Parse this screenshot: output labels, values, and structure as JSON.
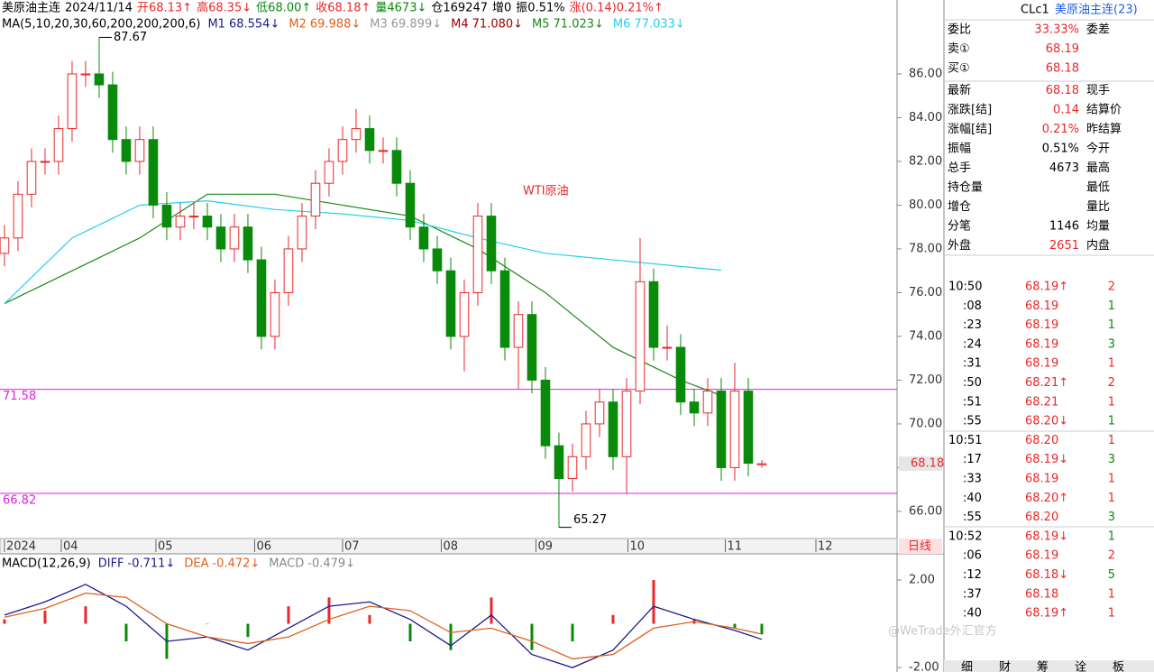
{
  "header": {
    "line1": [
      {
        "text": "美原油主连",
        "color": "#000000"
      },
      {
        "text": "2024/11/14",
        "color": "#000000"
      },
      {
        "text": "开68.13↑",
        "color": "#e8282b"
      },
      {
        "text": "高68.35↓",
        "color": "#e8282b"
      },
      {
        "text": "低68.00↑",
        "color": "#0a8a0a"
      },
      {
        "text": "收68.18↑",
        "color": "#e8282b"
      },
      {
        "text": "量4673↓",
        "color": "#0a8a0a"
      },
      {
        "text": "仓169247",
        "color": "#000000"
      },
      {
        "text": "增0",
        "color": "#000000"
      },
      {
        "text": "振0.51%",
        "color": "#000000"
      },
      {
        "text": "涨(0.14)0.21%↑",
        "color": "#e8282b"
      }
    ],
    "ma_title": "MA(5,10,20,30,60,200,200,200,6)",
    "ma": [
      {
        "name": "M1",
        "label": "68.554↓",
        "color": "#1a1a8c"
      },
      {
        "name": "M2",
        "label": "69.988↓",
        "color": "#e0601a"
      },
      {
        "name": "M3",
        "label": "69.899↓",
        "color": "#999999"
      },
      {
        "name": "M4",
        "label": "71.080↓",
        "color": "#a00000"
      },
      {
        "name": "M5",
        "label": "71.023↓",
        "color": "#1a8a1a"
      },
      {
        "name": "M6",
        "label": "77.033↓",
        "color": "#22d0e8"
      }
    ]
  },
  "chart_data": [
    {
      "type": "candlestick",
      "annotation": "WTI原油",
      "period": "日线",
      "open": [
        77.8,
        78.5,
        80.5,
        82,
        82,
        83.5,
        86,
        86,
        85.5,
        83,
        82,
        83,
        80,
        79,
        79.5,
        79.5,
        79,
        78,
        79,
        77.5,
        74,
        76,
        78,
        79.5,
        81,
        82,
        83,
        83.5,
        82.5,
        82.5,
        81,
        79,
        78,
        77,
        74,
        76,
        79.5,
        77,
        73.5,
        75,
        72,
        69,
        67.5,
        68.5,
        70,
        71,
        68.5,
        71.5,
        76.5,
        73.5,
        73.5,
        71,
        70.5,
        71.5,
        68,
        71.5,
        68.13
      ],
      "high": [
        79.1,
        81.1,
        82.6,
        82.6,
        84.1,
        86.6,
        86.6,
        87.67,
        86.1,
        83.6,
        83.6,
        83.6,
        80.6,
        80.1,
        80.1,
        80.1,
        79.6,
        79.6,
        79.6,
        78.1,
        76.6,
        78.6,
        80.1,
        81.6,
        82.6,
        83.6,
        84.4,
        84.1,
        83.1,
        83.1,
        81.6,
        79.6,
        78.6,
        77.6,
        76.6,
        80.1,
        80.1,
        77.6,
        75.6,
        75.6,
        72.6,
        69.6,
        69.1,
        70.6,
        71.6,
        71.6,
        72.1,
        78.5,
        77.1,
        74.5,
        74.1,
        71.6,
        72.1,
        72.1,
        72.8,
        72.1,
        68.35
      ],
      "low": [
        77.2,
        77.9,
        79.9,
        81.4,
        81.4,
        82.9,
        85.4,
        84.9,
        82.4,
        81.4,
        81.4,
        79.4,
        78.4,
        78.4,
        78.9,
        78.4,
        77.4,
        77.4,
        76.9,
        73.4,
        73.4,
        75.4,
        77.4,
        78.9,
        80.4,
        81.4,
        82.4,
        81.9,
        81.9,
        80.4,
        78.4,
        77.4,
        76.4,
        73.4,
        72.4,
        75.4,
        76.4,
        72.9,
        71.6,
        71.4,
        68.4,
        65.27,
        66.9,
        67.9,
        69.4,
        67.9,
        66.8,
        70.9,
        72.9,
        72.9,
        70.4,
        69.9,
        69.9,
        67.4,
        67.4,
        67.6,
        68.0
      ],
      "close": [
        78.5,
        80.5,
        82,
        82,
        83.5,
        86,
        86,
        85.5,
        83,
        82,
        83,
        80,
        79,
        79.5,
        79.5,
        79,
        78,
        79,
        77.5,
        74,
        76,
        78,
        79.5,
        81,
        82,
        83,
        83.5,
        82.5,
        82.5,
        81,
        79,
        78,
        77,
        74,
        76,
        79.5,
        77,
        73.5,
        75,
        72,
        69,
        67.5,
        68.5,
        70,
        71,
        68.5,
        71.5,
        76.5,
        73.5,
        73.5,
        71,
        70.5,
        71.5,
        68,
        71.5,
        68.2,
        68.18
      ],
      "up_color": "#e8282b",
      "down_color": "#0a8a0a",
      "series": [
        {
          "name": "M5",
          "color": "#1a8a1a",
          "x": [
            0,
            5,
            10,
            15,
            20,
            25,
            30,
            35,
            40,
            45,
            50,
            53
          ],
          "values": [
            75.5,
            77,
            78.5,
            80.5,
            80.5,
            80,
            79.5,
            78,
            76,
            73.5,
            72,
            71.3
          ]
        },
        {
          "name": "M6",
          "color": "#22d0e8",
          "x": [
            0,
            5,
            10,
            15,
            20,
            25,
            30,
            35,
            40,
            45,
            50,
            53
          ],
          "values": [
            75.5,
            78.5,
            80,
            80.2,
            79.8,
            79.6,
            79.3,
            78.5,
            77.8,
            77.5,
            77.2,
            77.03
          ]
        }
      ],
      "hlines": [
        {
          "value": 71.58,
          "color": "#e020e0"
        },
        {
          "value": 66.82,
          "color": "#e020e0"
        }
      ],
      "xlim": [
        -0.33,
        66
      ],
      "ylim": [
        64.76,
        89.38
      ],
      "xticks": [
        {
          "value": 0,
          "label": "2024"
        },
        {
          "value": 4.2,
          "label": "04"
        },
        {
          "value": 11.2,
          "label": "05"
        },
        {
          "value": 18.5,
          "label": "06"
        },
        {
          "value": 25,
          "label": "07"
        },
        {
          "value": 32.3,
          "label": "08"
        },
        {
          "value": 39.3,
          "label": "09"
        },
        {
          "value": 46.1,
          "label": "10"
        },
        {
          "value": 53.3,
          "label": "11"
        },
        {
          "value": 60,
          "label": "12"
        }
      ],
      "yticks": [
        {
          "value": 66,
          "label": "66.00"
        },
        {
          "value": 68,
          "label": "68.00"
        },
        {
          "value": 70,
          "label": "70.00"
        },
        {
          "value": 72,
          "label": "72.00"
        },
        {
          "value": 74,
          "label": "74.00"
        },
        {
          "value": 76,
          "label": "76.00"
        },
        {
          "value": 78,
          "label": "78.00"
        },
        {
          "value": 80,
          "label": "80.00"
        },
        {
          "value": 82,
          "label": "82.00"
        },
        {
          "value": 84,
          "label": "84.00"
        },
        {
          "value": 86,
          "label": "86.00"
        }
      ]
    },
    {
      "type": "macd",
      "title": "MACD(12,26,9)",
      "x": [
        0,
        3,
        6,
        9,
        12,
        15,
        18,
        21,
        24,
        27,
        30,
        33,
        36,
        39,
        42,
        45,
        48,
        51,
        54,
        56
      ],
      "series": [
        {
          "name": "DIFF",
          "label": "-0.711↓",
          "color": "#1a1a8c",
          "values": [
            0.4,
            1.0,
            1.8,
            0.8,
            -0.8,
            -0.6,
            -1.2,
            -0.2,
            0.8,
            1.0,
            0.2,
            -1.0,
            0.4,
            -1.4,
            -2.0,
            -1.2,
            0.8,
            0.2,
            -0.3,
            -0.711
          ]
        },
        {
          "name": "DEA",
          "label": "-0.472↓",
          "color": "#e0601a",
          "values": [
            0.3,
            0.7,
            1.4,
            1.2,
            0.0,
            -0.6,
            -0.9,
            -0.6,
            0.2,
            0.8,
            0.6,
            -0.4,
            -0.2,
            -0.8,
            -1.6,
            -1.4,
            -0.2,
            0.1,
            -0.2,
            -0.472
          ]
        }
      ],
      "histogram": {
        "name": "MACD",
        "label": "-0.479↓",
        "color": "#888888",
        "values": [
          0.2,
          0.6,
          0.8,
          -0.8,
          -1.6,
          0,
          -0.6,
          0.8,
          1.2,
          0.4,
          -0.8,
          -1.2,
          1.2,
          -1.2,
          -0.8,
          0.4,
          2.0,
          0.2,
          -0.2,
          -0.479
        ]
      },
      "up_color": "#e8282b",
      "down_color": "#0a8a0a",
      "xlim": [
        -0.33,
        66
      ],
      "ylim": [
        -2.2,
        3.15
      ],
      "yticks": [
        {
          "value": 2,
          "label": "2.00"
        },
        {
          "value": -2,
          "label": "-2.00"
        }
      ]
    }
  ],
  "quote": {
    "code": "CLc1",
    "name": "美原油主连(23)",
    "rows": [
      {
        "label": "委比",
        "value": "33.33%",
        "label2": "委差",
        "color": "#e8282b"
      },
      {
        "label": "卖①",
        "value": "68.19",
        "color": "#e8282b"
      },
      {
        "label": "买①",
        "value": "68.18",
        "color": "#e8282b"
      },
      {
        "label": "最新",
        "value": "68.18",
        "label2": "现手",
        "color": "#e8282b"
      },
      {
        "label": "涨跌[结]",
        "value": "0.14",
        "label2": "结算价",
        "color": "#e8282b"
      },
      {
        "label": "涨幅[结]",
        "value": "0.21%",
        "label2": "昨结算",
        "color": "#e8282b"
      },
      {
        "label": "振幅",
        "value": "0.51%",
        "label2": "今开",
        "color": "#000000"
      },
      {
        "label": "总手",
        "value": "4673",
        "label2": "最高",
        "color": "#000000"
      },
      {
        "label": "持仓量",
        "label2": "最低",
        "color": "#000000"
      },
      {
        "label": "增仓",
        "label2": "量比",
        "color": "#000000"
      },
      {
        "label": "分笔",
        "value": "1146",
        "label2": "均量",
        "color": "#000000"
      },
      {
        "label": "外盘",
        "value": "2651",
        "label2": "内盘",
        "color": "#e8282b"
      }
    ]
  },
  "trades": [
    {
      "time": "10:50",
      "price": "68.19↑",
      "vol": "2",
      "color": "#e8282b"
    },
    {
      "time": ":08",
      "price": "68.19",
      "vol": "1",
      "color": "#0a8a0a"
    },
    {
      "time": ":23",
      "price": "68.19",
      "vol": "1",
      "color": "#0a8a0a"
    },
    {
      "time": ":24",
      "price": "68.19",
      "vol": "3",
      "color": "#0a8a0a"
    },
    {
      "time": ":31",
      "price": "68.19",
      "vol": "1",
      "color": "#e8282b"
    },
    {
      "time": ":50",
      "price": "68.21↑",
      "vol": "2",
      "color": "#e8282b"
    },
    {
      "time": ":51",
      "price": "68.21",
      "vol": "1",
      "color": "#e8282b"
    },
    {
      "time": ":55",
      "price": "68.20↓",
      "vol": "1",
      "color": "#0a8a0a"
    },
    {
      "time": "10:51",
      "price": "68.20",
      "vol": "1",
      "color": "#e8282b"
    },
    {
      "time": ":17",
      "price": "68.19↓",
      "vol": "3",
      "color": "#0a8a0a"
    },
    {
      "time": ":33",
      "price": "68.19",
      "vol": "1",
      "color": "#e8282b"
    },
    {
      "time": ":40",
      "price": "68.20↑",
      "vol": "1",
      "color": "#e8282b"
    },
    {
      "time": ":55",
      "price": "68.20",
      "vol": "3",
      "color": "#0a8a0a"
    },
    {
      "time": "10:52",
      "price": "68.19↓",
      "vol": "1",
      "color": "#0a8a0a"
    },
    {
      "time": ":06",
      "price": "68.19",
      "vol": "2",
      "color": "#e8282b"
    },
    {
      "time": ":12",
      "price": "68.18↓",
      "vol": "5",
      "color": "#0a8a0a"
    },
    {
      "time": ":37",
      "price": "68.18",
      "vol": "1",
      "color": "#e8282b"
    },
    {
      "time": ":40",
      "price": "68.19↑",
      "vol": "1",
      "color": "#e8282b"
    }
  ],
  "tabs": [
    "细",
    "财",
    "筹",
    "诠",
    "板"
  ],
  "watermark": "@WeTrade外汇官方"
}
